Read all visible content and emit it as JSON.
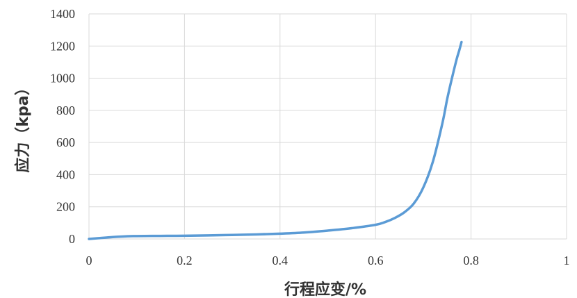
{
  "chart_data": {
    "type": "line",
    "title": "",
    "xlabel": "行程应变/%",
    "ylabel": "应力（kpa）",
    "xlim": [
      0,
      1
    ],
    "ylim": [
      0,
      1400
    ],
    "x_ticks": [
      "0",
      "0.2",
      "0.4",
      "0.6",
      "0.8",
      "1"
    ],
    "y_ticks": [
      "0",
      "200",
      "400",
      "600",
      "800",
      "1000",
      "1200",
      "1400"
    ],
    "grid": true,
    "legend": "none",
    "series": [
      {
        "color": "#5b9bd5",
        "x": [
          0,
          0.02,
          0.05,
          0.08,
          0.1,
          0.15,
          0.2,
          0.25,
          0.3,
          0.35,
          0.4,
          0.45,
          0.5,
          0.55,
          0.6,
          0.62,
          0.64,
          0.66,
          0.68,
          0.7,
          0.72,
          0.74,
          0.75,
          0.76,
          0.77,
          0.775,
          0.78
        ],
        "y": [
          0,
          5,
          12,
          17,
          18,
          19,
          20,
          22,
          25,
          28,
          33,
          40,
          52,
          67,
          88,
          105,
          130,
          165,
          220,
          320,
          480,
          720,
          870,
          1000,
          1120,
          1170,
          1225
        ]
      }
    ]
  }
}
